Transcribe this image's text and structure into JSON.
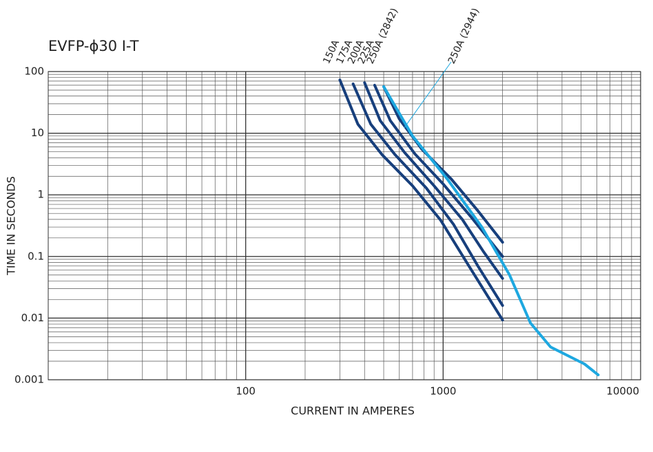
{
  "chart_data": {
    "type": "line",
    "title": "EVFP-ϕ30 I-T",
    "x_label": "CURRENT IN AMPERES",
    "y_label": "TIME IN SECONDS",
    "log_x": true,
    "log_y": true,
    "grid": true,
    "xlim": [
      10,
      10000
    ],
    "xticks": [
      100,
      1000,
      10000
    ],
    "ylim": [
      0.001,
      100
    ],
    "yticks": [
      100,
      10,
      1,
      0.1,
      0.01,
      0.001
    ],
    "series": [
      {
        "name": "150A",
        "color": "#173f7c",
        "x": [
          300,
          370,
          490,
          700,
          970,
          1340,
          2000
        ],
        "values": [
          73,
          14,
          4.5,
          1.4,
          0.39,
          0.073,
          0.0093
        ]
      },
      {
        "name": "175A",
        "color": "#173f7c",
        "x": [
          350,
          430,
          570,
          820,
          1130,
          1500,
          2000
        ],
        "values": [
          63,
          14,
          4.5,
          1.3,
          0.33,
          0.07,
          0.016
        ]
      },
      {
        "name": "200A",
        "color": "#173f7c",
        "x": [
          400,
          480,
          640,
          900,
          1250,
          1600,
          2000
        ],
        "values": [
          66,
          16,
          4.8,
          1.4,
          0.4,
          0.12,
          0.044
        ]
      },
      {
        "name": "225A",
        "color": "#173f7c",
        "x": [
          450,
          540,
          720,
          1000,
          1400,
          2000
        ],
        "values": [
          60,
          16,
          4.6,
          1.5,
          0.42,
          0.1
        ]
      },
      {
        "name": "250A (2842)",
        "color": "#173f7c",
        "x": [
          500,
          600,
          780,
          1100,
          1500,
          2000
        ],
        "values": [
          57,
          17,
          5.5,
          1.8,
          0.55,
          0.17
        ]
      },
      {
        "name": "250A (2944)",
        "color": "#1ea8e0",
        "x": [
          500,
          700,
          1050,
          1570,
          2170,
          2770,
          3500,
          5200,
          6100
        ],
        "values": [
          57,
          9,
          1.8,
          0.3,
          0.05,
          0.0083,
          0.0034,
          0.0018,
          0.0012
        ]
      }
    ]
  }
}
